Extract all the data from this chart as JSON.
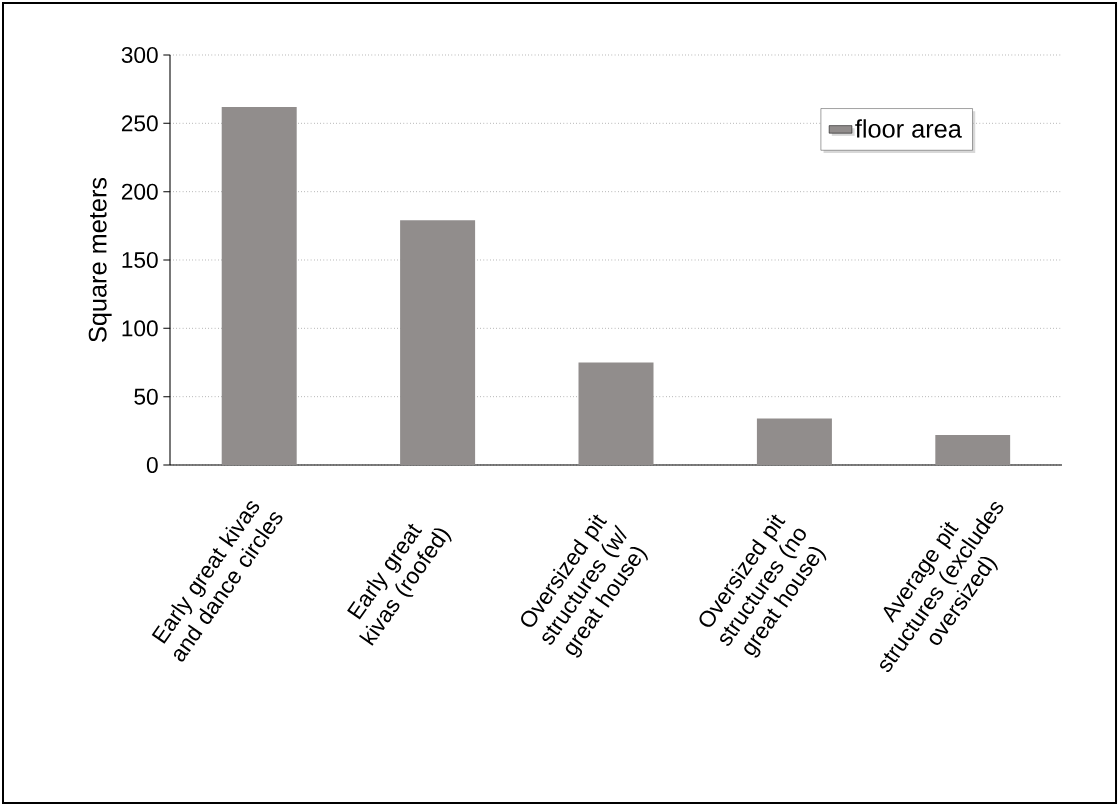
{
  "chart_data": {
    "type": "bar",
    "ylabel": "Square meters",
    "categories": [
      "Early great kivas and dance circles",
      "Early great kivas (roofed)",
      "Oversized pit structures (w/ great house)",
      "Oversized pit structures (no great house)",
      "Average pit structures (excludes oversized)"
    ],
    "series": [
      {
        "name": "floor area",
        "color": "#918d8c",
        "values": [
          262,
          179,
          75,
          34,
          22
        ]
      }
    ],
    "ylim": [
      0,
      300
    ],
    "yticks": [
      0,
      50,
      100,
      150,
      200,
      250,
      300
    ],
    "grid": "y",
    "legend": "top right"
  }
}
